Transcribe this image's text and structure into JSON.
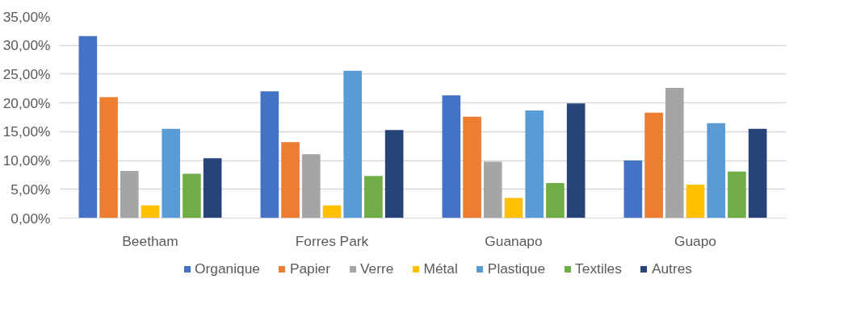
{
  "chart_data": {
    "type": "bar",
    "categories": [
      "Beetham",
      "Forres Park",
      "Guanapo",
      "Guapo"
    ],
    "series": [
      {
        "name": "Organique",
        "color": "#4472c4",
        "values": [
          31.6,
          22.0,
          21.3,
          10.0
        ]
      },
      {
        "name": "Papier",
        "color": "#ed7d31",
        "values": [
          21.0,
          13.2,
          17.6,
          18.3
        ]
      },
      {
        "name": "Verre",
        "color": "#a5a5a5",
        "values": [
          8.2,
          11.1,
          9.8,
          22.6
        ]
      },
      {
        "name": "Métal",
        "color": "#ffc000",
        "values": [
          2.2,
          2.2,
          3.5,
          5.8
        ]
      },
      {
        "name": "Plastique",
        "color": "#5b9bd5",
        "values": [
          15.5,
          25.6,
          18.7,
          16.5
        ]
      },
      {
        "name": "Textiles",
        "color": "#70ad47",
        "values": [
          7.7,
          7.3,
          6.1,
          8.1
        ]
      },
      {
        "name": "Autres",
        "color": "#264478",
        "values": [
          10.4,
          15.3,
          19.9,
          15.5
        ]
      }
    ],
    "ylim": [
      0,
      35
    ],
    "yticks": [
      {
        "value": 0,
        "label": "0,00%"
      },
      {
        "value": 5,
        "label": "5,00%"
      },
      {
        "value": 10,
        "label": "10,00%"
      },
      {
        "value": 15,
        "label": "15,00%"
      },
      {
        "value": 20,
        "label": "20,00%"
      },
      {
        "value": 25,
        "label": "25,00%"
      },
      {
        "value": 30,
        "label": "30,00%"
      },
      {
        "value": 35,
        "label": "35,00%"
      }
    ],
    "grid": "y",
    "legend": "bottom"
  }
}
